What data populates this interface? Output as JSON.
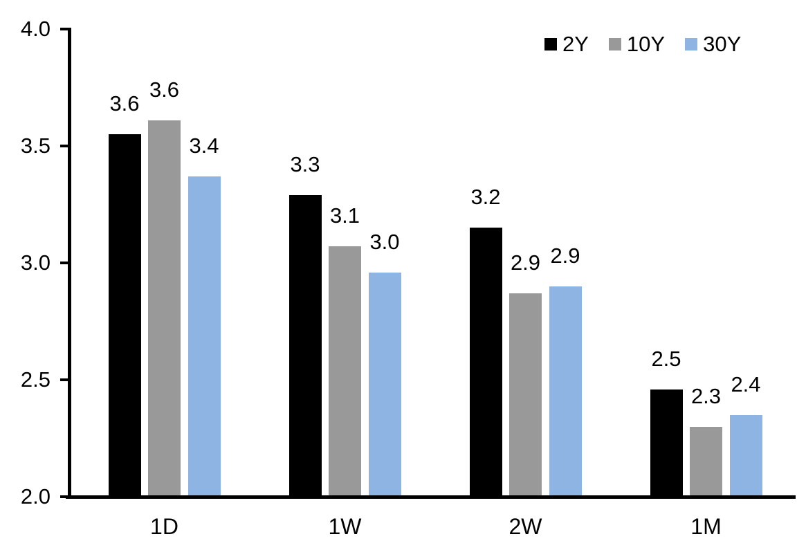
{
  "chart_data": {
    "type": "bar",
    "categories": [
      "1D",
      "1W",
      "2W",
      "1M"
    ],
    "series": [
      {
        "name": "2Y",
        "color": "#000000",
        "values": [
          3.55,
          3.29,
          3.15,
          2.46
        ],
        "data_labels": [
          "3.6",
          "3.3",
          "3.2",
          "2.5"
        ]
      },
      {
        "name": "10Y",
        "color": "#999999",
        "values": [
          3.61,
          3.07,
          2.87,
          2.3
        ],
        "data_labels": [
          "3.6",
          "3.1",
          "2.9",
          "2.3"
        ]
      },
      {
        "name": "30Y",
        "color": "#8DB4E2",
        "values": [
          3.37,
          2.96,
          2.9,
          2.35
        ],
        "data_labels": [
          "3.4",
          "3.0",
          "2.9",
          "2.4"
        ]
      }
    ],
    "y_axis": {
      "min": 2.0,
      "max": 4.0,
      "tick_interval": 0.5,
      "tick_labels": [
        "4.0",
        "3.5",
        "3.0",
        "2.5",
        "2.0"
      ]
    },
    "x_axis": {
      "tick_labels": [
        "1D",
        "1W",
        "2W",
        "1M"
      ]
    },
    "legend": {
      "position": "top-right",
      "entries": [
        "2Y",
        "10Y",
        "30Y"
      ]
    },
    "grid": false,
    "background_color": "#FFFFFF",
    "axis_color": "#000000"
  }
}
